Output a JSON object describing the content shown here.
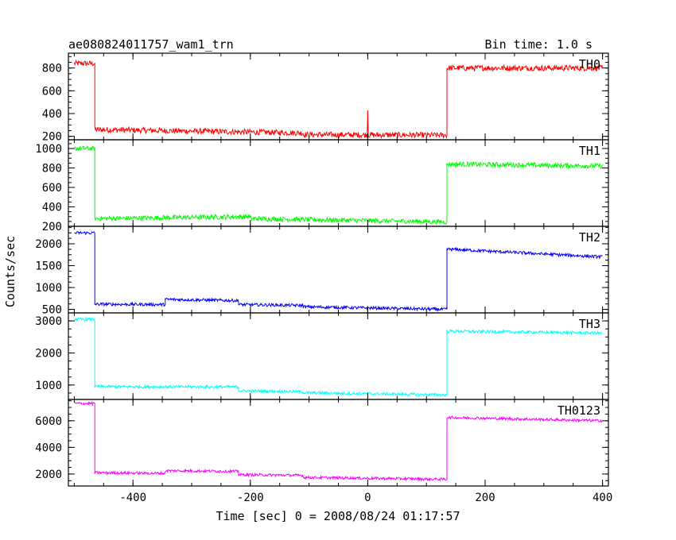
{
  "header": {
    "left_title": "ae080824011757_wam1_trn",
    "right_title": "Bin time: 1.0 s"
  },
  "chart_data": {
    "type": "line",
    "title": "ae080824011757_wam1_trn",
    "subtitle": "Bin time: 1.0 s",
    "xlabel": "Time [sec] 0 = 2008/08/24 01:17:57",
    "ylabel": "Counts/sec",
    "xlim": [
      -510,
      410
    ],
    "x_ticks": [
      -400,
      -200,
      0,
      200,
      400
    ],
    "grid": false,
    "panels": [
      {
        "name": "TH0",
        "color": "#ff0000",
        "ylim": [
          170,
          930
        ],
        "y_ticks": [
          200,
          400,
          600,
          800
        ],
        "noise": 25,
        "segments": [
          {
            "x": [
              -500,
              -465
            ],
            "y": [
              840,
              840
            ]
          },
          {
            "x": [
              -465,
              -110
            ],
            "y": [
              260,
              230
            ]
          },
          {
            "x": [
              -110,
              135
            ],
            "y": [
              215,
              210
            ]
          },
          {
            "x": [
              135,
              400
            ],
            "y": [
              800,
              800
            ]
          }
        ],
        "spikes": [
          {
            "x": 0,
            "y": 430
          }
        ]
      },
      {
        "name": "TH1",
        "color": "#00ff00",
        "ylim": [
          200,
          1090
        ],
        "y_ticks": [
          200,
          400,
          600,
          800,
          1000
        ],
        "noise": 25,
        "segments": [
          {
            "x": [
              -500,
              -465
            ],
            "y": [
              1000,
              1000
            ]
          },
          {
            "x": [
              -465,
              -200
            ],
            "y": [
              280,
              300
            ]
          },
          {
            "x": [
              -200,
              135
            ],
            "y": [
              280,
              245
            ]
          },
          {
            "x": [
              135,
              400
            ],
            "y": [
              840,
              820
            ]
          }
        ],
        "spikes": []
      },
      {
        "name": "TH2",
        "color": "#0000ff",
        "ylim": [
          420,
          2400
        ],
        "y_ticks": [
          500,
          1000,
          1500,
          2000
        ],
        "noise": 35,
        "segments": [
          {
            "x": [
              -500,
              -465
            ],
            "y": [
              2250,
              2250
            ]
          },
          {
            "x": [
              -465,
              -345
            ],
            "y": [
              620,
              610
            ]
          },
          {
            "x": [
              -345,
              -220
            ],
            "y": [
              730,
              700
            ]
          },
          {
            "x": [
              -220,
              -110
            ],
            "y": [
              610,
              590
            ]
          },
          {
            "x": [
              -110,
              135
            ],
            "y": [
              560,
              500
            ]
          },
          {
            "x": [
              135,
              400
            ],
            "y": [
              1880,
              1700
            ]
          }
        ],
        "spikes": []
      },
      {
        "name": "TH3",
        "color": "#00ffff",
        "ylim": [
          550,
          3250
        ],
        "y_ticks": [
          1000,
          2000,
          3000
        ],
        "noise": 45,
        "segments": [
          {
            "x": [
              -500,
              -465
            ],
            "y": [
              3050,
              3050
            ]
          },
          {
            "x": [
              -465,
              -220
            ],
            "y": [
              950,
              940
            ]
          },
          {
            "x": [
              -220,
              -110
            ],
            "y": [
              820,
              790
            ]
          },
          {
            "x": [
              -110,
              135
            ],
            "y": [
              760,
              690
            ]
          },
          {
            "x": [
              135,
              400
            ],
            "y": [
              2680,
              2620
            ]
          }
        ],
        "spikes": []
      },
      {
        "name": "TH0123",
        "color": "#ff00ff",
        "ylim": [
          1100,
          7600
        ],
        "y_ticks": [
          2000,
          4000,
          6000
        ],
        "noise": 100,
        "segments": [
          {
            "x": [
              -500,
              -465
            ],
            "y": [
              7300,
              7300
            ]
          },
          {
            "x": [
              -465,
              -345
            ],
            "y": [
              2100,
              2050
            ]
          },
          {
            "x": [
              -345,
              -220
            ],
            "y": [
              2250,
              2200
            ]
          },
          {
            "x": [
              -220,
              -110
            ],
            "y": [
              1950,
              1900
            ]
          },
          {
            "x": [
              -110,
              135
            ],
            "y": [
              1750,
              1600
            ]
          },
          {
            "x": [
              135,
              400
            ],
            "y": [
              6250,
              6000
            ]
          }
        ],
        "spikes": []
      }
    ]
  }
}
